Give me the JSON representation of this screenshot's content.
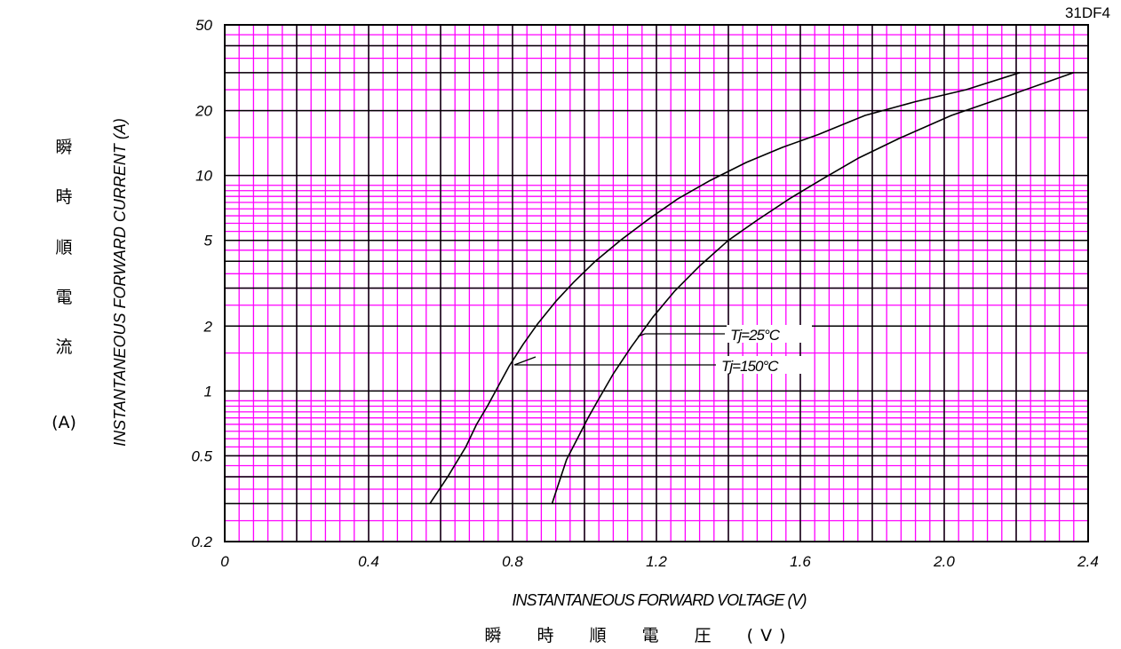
{
  "chart_data": {
    "type": "line",
    "model_label": "31DF4",
    "xlabel": "INSTANTANEOUS FORWARD VOLTAGE (V)",
    "xlabel_jp": "瞬 時 順 電 圧 (V)",
    "ylabel": "INSTANTANEOUS FORWARD CURRENT (A)",
    "ylabel_jp": [
      "瞬",
      "時",
      "順",
      "電",
      "流",
      "(A)"
    ],
    "xlim": [
      0,
      2.4
    ],
    "ylim": [
      0.2,
      50
    ],
    "yscale": "log",
    "x_ticks": [
      "0",
      "0.4",
      "0.8",
      "1.2",
      "1.6",
      "2.0",
      "2.4"
    ],
    "y_ticks": [
      "0.2",
      "0.5",
      "1",
      "2",
      "5",
      "10",
      "20",
      "50"
    ],
    "grid": true,
    "grid_color": "#ff00ff",
    "major_grid_color": "#000000",
    "series": [
      {
        "name": "Tj=150°C",
        "x": [
          0.57,
          0.62,
          0.67,
          0.7,
          0.73,
          0.76,
          0.79,
          0.83,
          0.87,
          0.92,
          0.97,
          1.03,
          1.1,
          1.18,
          1.26,
          1.35,
          1.45,
          1.55,
          1.65,
          1.78,
          1.92,
          2.06,
          2.21
        ],
        "y": [
          0.3,
          0.4,
          0.55,
          0.7,
          0.85,
          1.05,
          1.3,
          1.65,
          2.05,
          2.6,
          3.2,
          4.0,
          5.0,
          6.3,
          7.8,
          9.5,
          11.5,
          13.5,
          15.5,
          19,
          22,
          25,
          30
        ]
      },
      {
        "name": "Tj=25°C",
        "x": [
          0.91,
          0.93,
          0.95,
          0.98,
          1.01,
          1.04,
          1.08,
          1.13,
          1.19,
          1.25,
          1.32,
          1.4,
          1.48,
          1.57,
          1.66,
          1.76,
          1.88,
          2.02,
          2.18,
          2.36
        ],
        "y": [
          0.3,
          0.38,
          0.48,
          0.6,
          0.75,
          0.92,
          1.2,
          1.6,
          2.2,
          2.9,
          3.8,
          5.0,
          6.2,
          7.8,
          9.6,
          12,
          15,
          19,
          23.5,
          30
        ]
      }
    ]
  }
}
